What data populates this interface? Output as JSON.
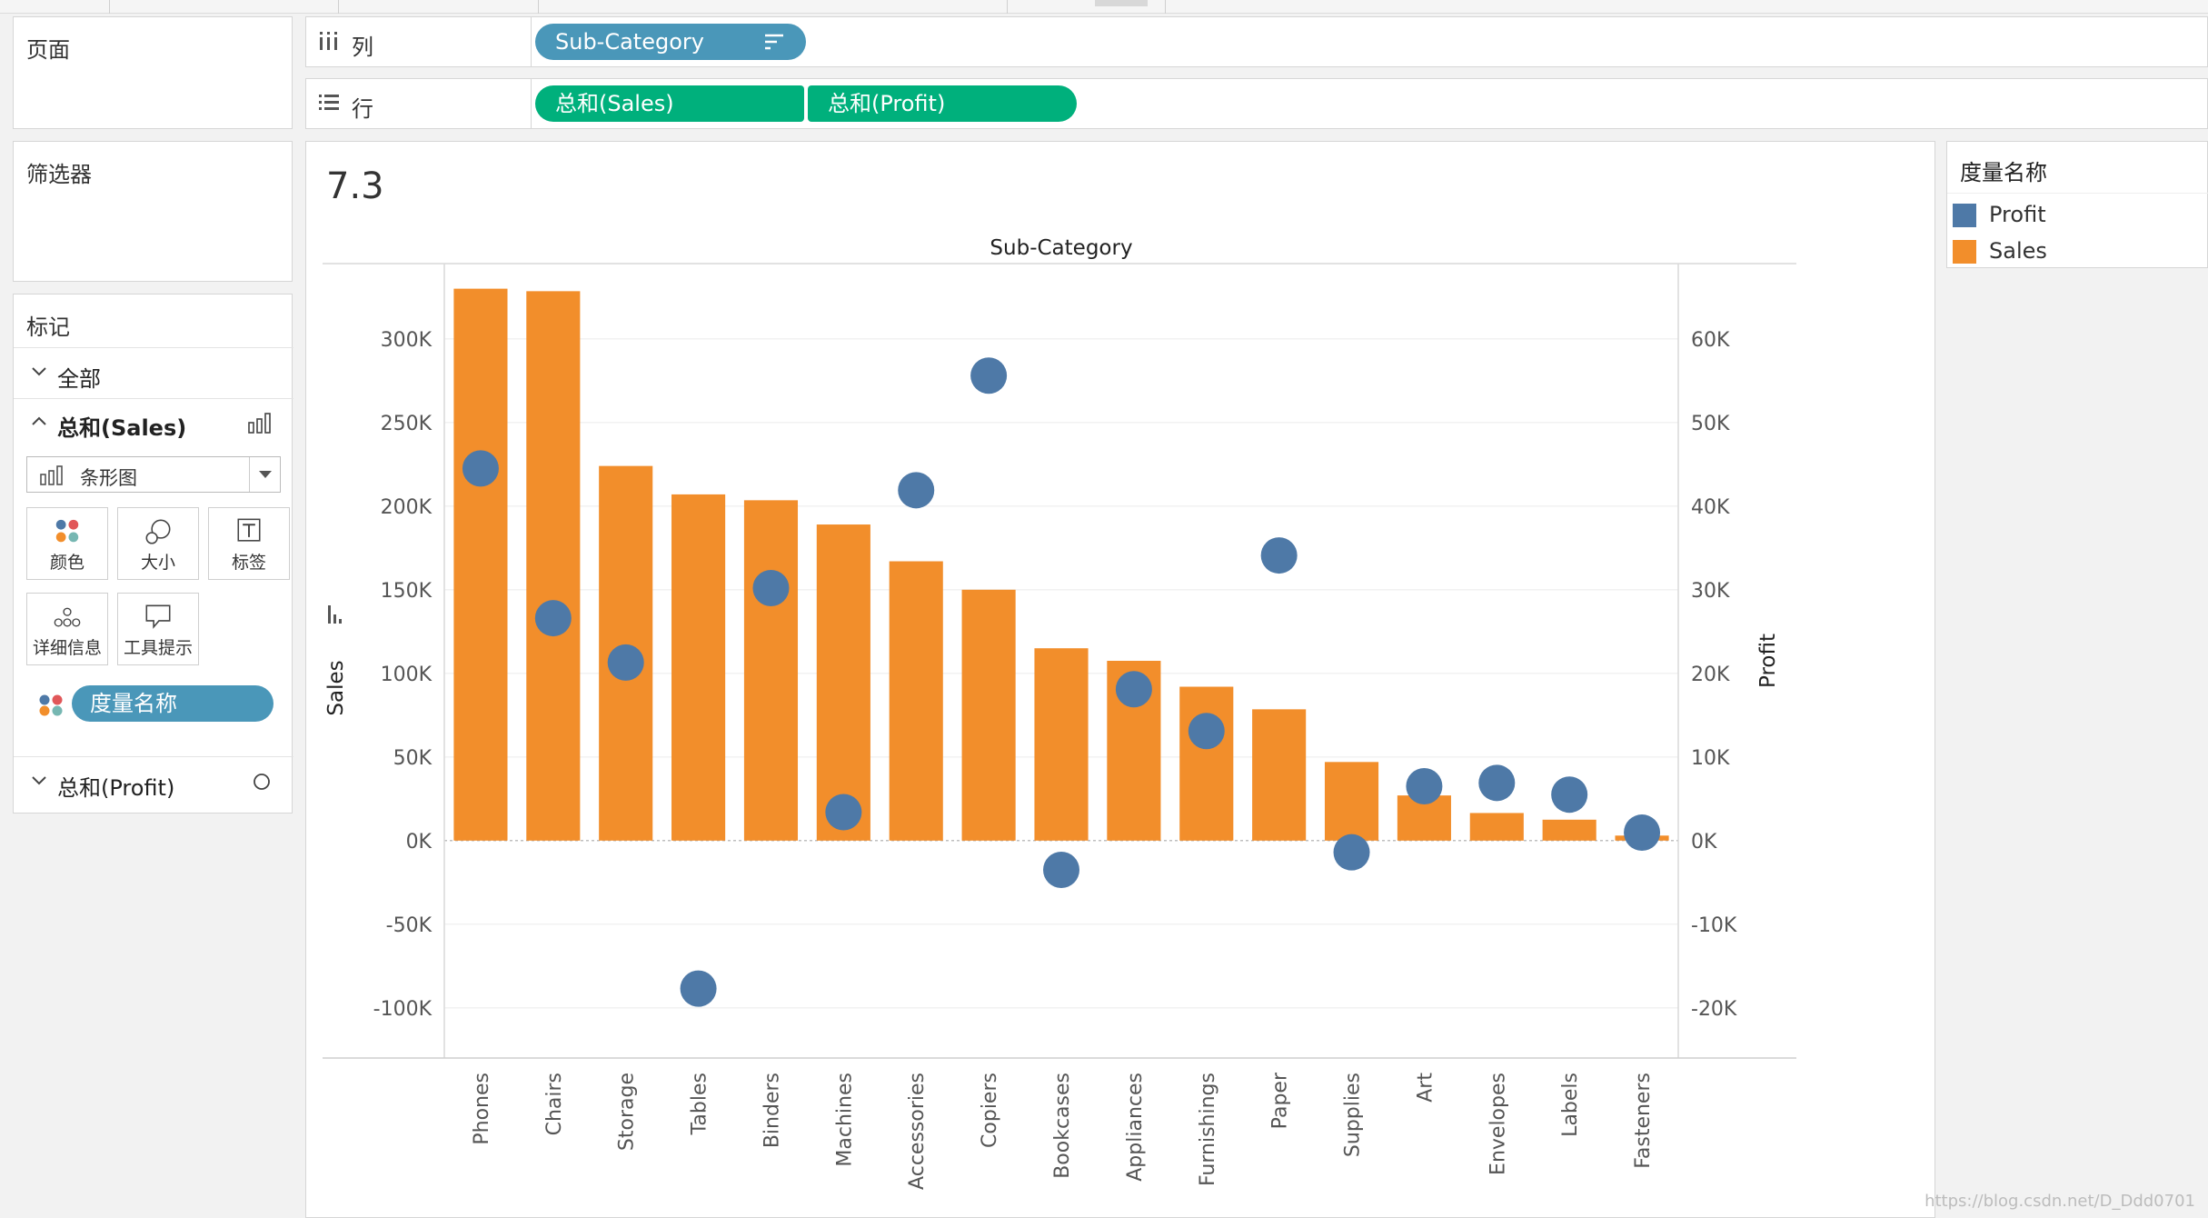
{
  "shelves": {
    "columns": {
      "label": "列",
      "pills": [
        "Sub-Category"
      ]
    },
    "rows": {
      "label": "行",
      "pills": [
        "总和(Sales)",
        "总和(Profit)"
      ]
    }
  },
  "panels": {
    "pages": "页面",
    "filters": "筛选器",
    "marks": {
      "title": "标记",
      "all": "全部",
      "sales": "总和(Sales)",
      "mark_type": "条形图",
      "buttons": [
        "颜色",
        "大小",
        "标签",
        "详细信息",
        "工具提示"
      ],
      "color_pill": "度量名称",
      "profit": "总和(Profit)"
    }
  },
  "worksheet": {
    "title": "7.3"
  },
  "legend": {
    "title": "度量名称",
    "items": [
      {
        "name": "Profit",
        "color": "#4e79a7"
      },
      {
        "name": "Sales",
        "color": "#f28e2b"
      }
    ]
  },
  "chart_data": {
    "type": "bar",
    "title": "Sub-Category",
    "categories": [
      "Phones",
      "Chairs",
      "Storage",
      "Tables",
      "Binders",
      "Machines",
      "Accessories",
      "Copiers",
      "Bookcases",
      "Appliances",
      "Furnishings",
      "Paper",
      "Supplies",
      "Art",
      "Envelopes",
      "Labels",
      "Fasteners"
    ],
    "series": [
      {
        "name": "Sales",
        "axis": "left",
        "mark": "bar",
        "color": "#f28e2b",
        "values": [
          330000,
          328500,
          224000,
          207000,
          203500,
          189000,
          167000,
          150000,
          115000,
          107500,
          92000,
          78500,
          47000,
          27000,
          16500,
          12500,
          3000
        ]
      },
      {
        "name": "Profit",
        "axis": "right",
        "mark": "circle",
        "color": "#4e79a7",
        "values": [
          44500,
          26600,
          21300,
          -17700,
          30200,
          3400,
          41900,
          55600,
          -3500,
          18100,
          13100,
          34100,
          -1400,
          6500,
          6900,
          5500,
          950
        ]
      }
    ],
    "ylabel": "Sales",
    "y2label": "Profit",
    "ylim": [
      -130000,
      345000
    ],
    "y2lim": [
      -26000,
      69000
    ],
    "yticks": [
      300000,
      250000,
      200000,
      150000,
      100000,
      50000,
      0,
      -50000,
      -100000
    ],
    "ytick_labels": [
      "300K",
      "250K",
      "200K",
      "150K",
      "100K",
      "50K",
      "0K",
      "-50K",
      "-100K"
    ],
    "y2ticks": [
      60000,
      50000,
      40000,
      30000,
      20000,
      10000,
      0,
      -10000,
      -20000
    ],
    "y2tick_labels": [
      "60K",
      "50K",
      "40K",
      "30K",
      "20K",
      "10K",
      "0K",
      "-10K",
      "-20K"
    ],
    "grid": true,
    "legend_position": "right"
  },
  "watermark": "https://blog.csdn.net/D_Ddd0701"
}
